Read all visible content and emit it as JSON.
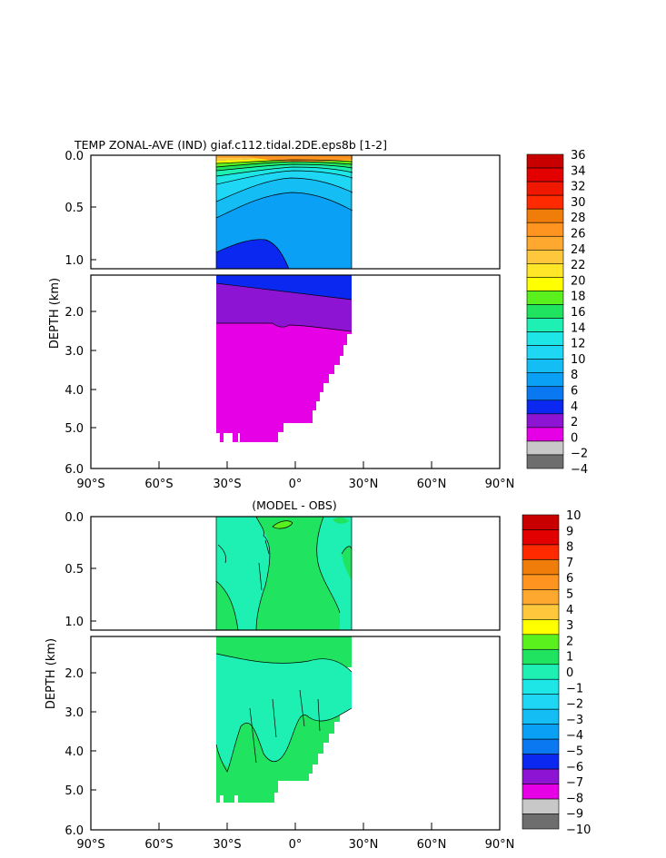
{
  "chart_data": [
    {
      "type": "heatmap",
      "title": "TEMP ZONAL-AVE (IND) giaf.c112.tidal.2DE.eps8b [1-2]",
      "ylabel": "DEPTH (km)",
      "x_ticks": [
        "90°S",
        "60°S",
        "30°S",
        "0°",
        "30°N",
        "60°N",
        "90°N"
      ],
      "y_ticks_upper": [
        "0.0",
        "0.5",
        "1.0"
      ],
      "y_ticks_lower": [
        "2.0",
        "3.0",
        "4.0",
        "5.0",
        "6.0"
      ],
      "xlim": [
        -90,
        90
      ],
      "ylim": [
        0,
        6
      ],
      "colorbar_labels": [
        "36",
        "34",
        "32",
        "30",
        "28",
        "26",
        "24",
        "22",
        "20",
        "18",
        "16",
        "14",
        "12",
        "10",
        "8",
        "6",
        "4",
        "2",
        "0",
        "−2",
        "−4"
      ],
      "colorbar_colors": [
        "#c80000",
        "#e20000",
        "#f01800",
        "#ff2a00",
        "#f07d0a",
        "#ff9520",
        "#ffa830",
        "#ffc83c",
        "#ffe628",
        "#ffff00",
        "#5af01e",
        "#20e460",
        "#1ef0b4",
        "#1ee6e6",
        "#1ed7f5",
        "#14bef5",
        "#0aa0f5",
        "#0a78f0",
        "#0a28f0",
        "#8c14d2",
        "#e600e6",
        "#c8c8c8",
        "#6e6e6e"
      ]
    },
    {
      "type": "heatmap",
      "title": "(MODEL - OBS)",
      "ylabel": "DEPTH (km)",
      "x_ticks": [
        "90°S",
        "60°S",
        "30°S",
        "0°",
        "30°N",
        "60°N",
        "90°N"
      ],
      "y_ticks_upper": [
        "0.0",
        "0.5",
        "1.0"
      ],
      "y_ticks_lower": [
        "2.0",
        "3.0",
        "4.0",
        "5.0",
        "6.0"
      ],
      "xlim": [
        -90,
        90
      ],
      "ylim": [
        0,
        6
      ],
      "colorbar_labels": [
        "10",
        "9",
        "8",
        "7",
        "6",
        "5",
        "4",
        "3",
        "2",
        "1",
        "0",
        "−1",
        "−2",
        "−3",
        "−4",
        "−5",
        "−6",
        "−7",
        "−8",
        "−9",
        "−10"
      ],
      "colorbar_colors": [
        "#c80000",
        "#e20000",
        "#ff2a00",
        "#f07d0a",
        "#ff9520",
        "#ffa830",
        "#ffc83c",
        "#ffff00",
        "#5af01e",
        "#20e460",
        "#1ef0b4",
        "#1ee6e6",
        "#1ed7f5",
        "#14bef5",
        "#0aa0f5",
        "#0a78f0",
        "#0a28f0",
        "#8c14d2",
        "#e600e6",
        "#c8c8c8",
        "#6e6e6e"
      ]
    }
  ]
}
